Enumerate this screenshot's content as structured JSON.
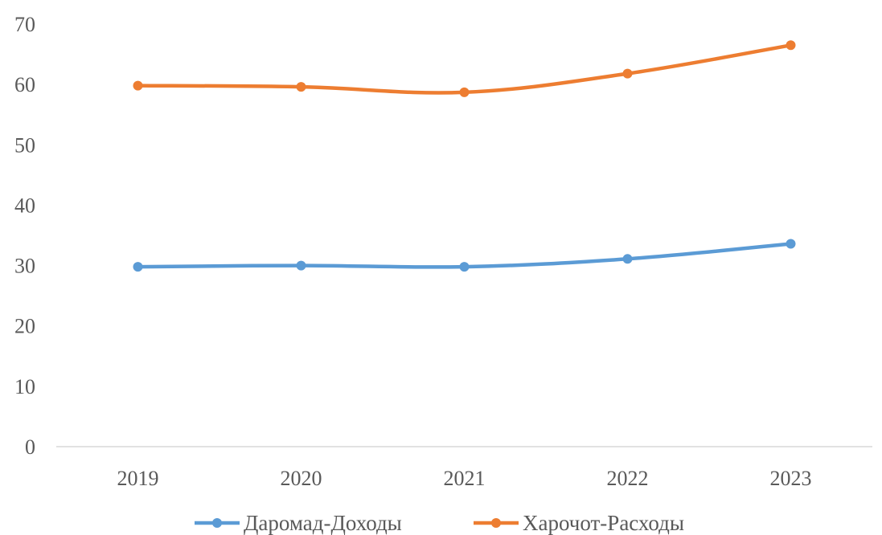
{
  "chart_data": {
    "type": "line",
    "categories": [
      "2019",
      "2020",
      "2021",
      "2022",
      "2023"
    ],
    "series": [
      {
        "name": "Даромад-Доходы",
        "color": "#5B9BD5",
        "values": [
          29.8,
          30.0,
          29.8,
          31.1,
          33.6
        ]
      },
      {
        "name": "Харочот-Расходы",
        "color": "#ED7D31",
        "values": [
          59.8,
          59.6,
          58.7,
          61.8,
          66.5
        ]
      }
    ],
    "ylim": [
      0,
      70
    ],
    "yticks": [
      "0",
      "10",
      "20",
      "30",
      "40",
      "50",
      "60",
      "70"
    ],
    "grid": false,
    "legend": "bottom"
  }
}
